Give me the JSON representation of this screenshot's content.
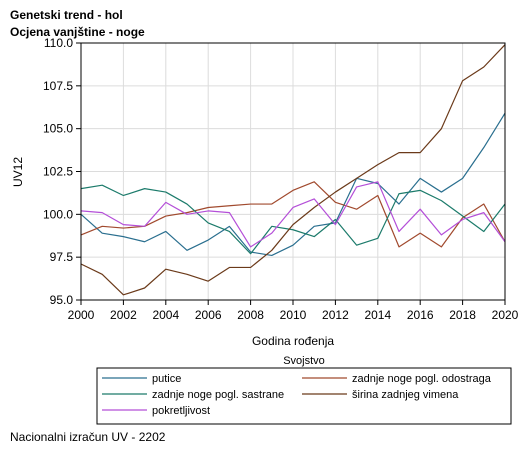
{
  "title_line1": "Genetski trend - hol",
  "title_line2": "Ocjena vanjštine - noge",
  "footnote": "Nacionalni izračun UV - 2202",
  "chart_data": {
    "type": "line",
    "xlabel": "Godina rođenja",
    "ylabel": "UV12",
    "xlim": [
      2000,
      2020
    ],
    "ylim": [
      95,
      110
    ],
    "x_ticks": [
      "2000",
      "2002",
      "2004",
      "2006",
      "2008",
      "2010",
      "2012",
      "2014",
      "2016",
      "2018",
      "2020"
    ],
    "y_ticks": [
      "95.0",
      "97.5",
      "100.0",
      "102.5",
      "105.0",
      "107.5",
      "110.0"
    ],
    "grid": true,
    "legend_title": "Svojstvo",
    "legend_position": "bottom",
    "x": [
      2000,
      2001,
      2002,
      2003,
      2004,
      2005,
      2006,
      2007,
      2008,
      2009,
      2010,
      2011,
      2012,
      2013,
      2014,
      2015,
      2016,
      2017,
      2018,
      2019,
      2020
    ],
    "series": [
      {
        "name": "putice",
        "color": "#2a6f8f",
        "values": [
          100.0,
          98.9,
          98.7,
          98.4,
          99.0,
          97.9,
          98.5,
          99.3,
          97.8,
          97.6,
          98.2,
          99.3,
          99.5,
          102.1,
          101.8,
          100.6,
          102.1,
          101.3,
          102.1,
          103.9,
          105.9
        ]
      },
      {
        "name": "zadnje noge pogl. odostraga",
        "color": "#a14a2e",
        "values": [
          98.8,
          99.3,
          99.2,
          99.3,
          99.9,
          100.1,
          100.4,
          100.5,
          100.6,
          100.6,
          101.4,
          101.9,
          100.7,
          100.3,
          101.1,
          98.1,
          98.9,
          98.1,
          99.8,
          100.6,
          98.4
        ]
      },
      {
        "name": "zadnje noge pogl. sastrane",
        "color": "#1c7b6b",
        "values": [
          101.5,
          101.7,
          101.1,
          101.5,
          101.3,
          100.6,
          99.5,
          99.0,
          97.7,
          99.3,
          99.1,
          98.7,
          99.7,
          98.2,
          98.6,
          101.2,
          101.4,
          100.8,
          99.9,
          99.0,
          100.6
        ]
      },
      {
        "name": "širina zadnjeg vimena",
        "color": "#6b3a1a",
        "values": [
          97.1,
          96.5,
          95.3,
          95.7,
          96.8,
          96.5,
          96.1,
          96.9,
          96.9,
          97.9,
          99.4,
          100.4,
          101.3,
          102.1,
          102.9,
          103.6,
          103.6,
          105.0,
          107.8,
          108.6,
          109.9
        ]
      },
      {
        "name": "pokretljivost",
        "color": "#b44fd8",
        "values": [
          100.2,
          100.1,
          99.4,
          99.3,
          100.7,
          100.0,
          100.2,
          100.1,
          98.1,
          98.9,
          100.4,
          100.9,
          99.4,
          101.6,
          101.9,
          99.0,
          100.3,
          98.8,
          99.7,
          100.1,
          98.4
        ]
      }
    ]
  }
}
